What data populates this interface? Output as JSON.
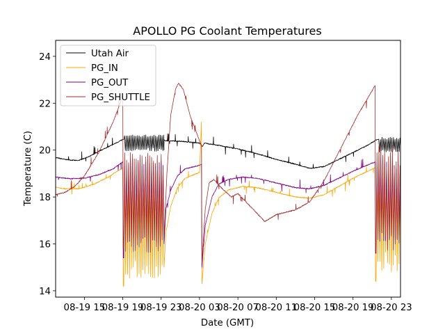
{
  "chart_data": {
    "type": "line",
    "title": "APOLLO PG Coolant Temperatures",
    "xlabel": "Date (GMT)",
    "ylabel": "Temperature (C)",
    "x_unit": "hours since 08-19 00:00 GMT",
    "xlim": [
      12.0,
      47.95
    ],
    "ylim": [
      13.73,
      24.68
    ],
    "grid": false,
    "legend_position": "top-left",
    "x_ticks": [
      {
        "value": 15,
        "label": "08-19 15"
      },
      {
        "value": 19,
        "label": "08-19 19"
      },
      {
        "value": 23,
        "label": "08-19 23"
      },
      {
        "value": 27,
        "label": "08-20 03"
      },
      {
        "value": 31,
        "label": "08-20 07"
      },
      {
        "value": 35,
        "label": "08-20 11"
      },
      {
        "value": 39,
        "label": "08-20 15"
      },
      {
        "value": 43,
        "label": "08-20 19"
      },
      {
        "value": 47,
        "label": "08-20 23"
      }
    ],
    "y_ticks": [
      {
        "value": 14,
        "label": "14"
      },
      {
        "value": 16,
        "label": "16"
      },
      {
        "value": 18,
        "label": "18"
      },
      {
        "value": 20,
        "label": "20"
      },
      {
        "value": 22,
        "label": "22"
      },
      {
        "value": 24,
        "label": "24"
      }
    ],
    "series": [
      {
        "name": "Utah Air",
        "color": "#000000",
        "points": [
          [
            12.0,
            19.68
          ],
          [
            13.0,
            19.6
          ],
          [
            14.3,
            19.55
          ],
          [
            15.5,
            19.72
          ],
          [
            16.5,
            19.95
          ],
          [
            17.8,
            20.2
          ],
          [
            19.0,
            20.45
          ],
          [
            19.1,
            20.45
          ],
          [
            23.3,
            20.45
          ],
          [
            23.4,
            20.4
          ],
          [
            25.0,
            20.38
          ],
          [
            27.0,
            20.3
          ],
          [
            27.3,
            20.15
          ],
          [
            27.5,
            20.3
          ],
          [
            29.0,
            20.2
          ],
          [
            31.0,
            20.05
          ],
          [
            33.0,
            19.85
          ],
          [
            35.0,
            19.6
          ],
          [
            37.0,
            19.4
          ],
          [
            38.5,
            19.22
          ],
          [
            40.0,
            19.3
          ],
          [
            41.5,
            19.6
          ],
          [
            43.0,
            19.9
          ],
          [
            44.5,
            20.2
          ],
          [
            45.5,
            20.45
          ],
          [
            45.6,
            20.45
          ],
          [
            48.0,
            20.45
          ]
        ],
        "oscillations": [
          {
            "start": 19.1,
            "end": 23.3,
            "period": 0.17,
            "low": 19.95,
            "high": 20.65
          },
          {
            "start": 45.6,
            "end": 47.95,
            "period": 0.17,
            "low": 19.9,
            "high": 20.55
          }
        ]
      },
      {
        "name": "PG_IN",
        "color": "#ffa500",
        "points": [
          [
            12.0,
            18.42
          ],
          [
            13.0,
            18.35
          ],
          [
            14.5,
            18.35
          ],
          [
            16.0,
            18.55
          ],
          [
            17.5,
            18.85
          ],
          [
            19.0,
            19.25
          ],
          [
            19.05,
            14.2
          ],
          [
            23.3,
            15.0
          ],
          [
            23.5,
            16.5
          ],
          [
            24.0,
            17.6
          ],
          [
            24.7,
            18.4
          ],
          [
            25.5,
            18.8
          ],
          [
            27.0,
            19.05
          ],
          [
            27.2,
            21.2
          ],
          [
            27.25,
            14.3
          ],
          [
            27.6,
            16.0
          ],
          [
            28.3,
            17.3
          ],
          [
            29.0,
            17.95
          ],
          [
            30.0,
            18.3
          ],
          [
            31.5,
            18.45
          ],
          [
            33.0,
            18.4
          ],
          [
            35.0,
            18.2
          ],
          [
            37.0,
            18.0
          ],
          [
            38.5,
            17.95
          ],
          [
            40.0,
            18.1
          ],
          [
            41.5,
            18.45
          ],
          [
            43.0,
            18.8
          ],
          [
            45.3,
            19.25
          ],
          [
            45.35,
            14.4
          ],
          [
            47.95,
            15.2
          ]
        ],
        "oscillations": [
          {
            "start": 19.1,
            "end": 23.2,
            "period": 0.2,
            "low": 14.5,
            "high": 19.2
          },
          {
            "start": 45.4,
            "end": 47.95,
            "period": 0.2,
            "low": 14.8,
            "high": 19.1
          }
        ]
      },
      {
        "name": "PG_OUT",
        "color": "#800080",
        "points": [
          [
            12.0,
            18.85
          ],
          [
            13.5,
            18.78
          ],
          [
            15.0,
            18.8
          ],
          [
            16.5,
            18.95
          ],
          [
            18.0,
            19.2
          ],
          [
            19.0,
            19.5
          ],
          [
            19.05,
            15.4
          ],
          [
            23.3,
            16.0
          ],
          [
            23.5,
            17.5
          ],
          [
            24.0,
            18.3
          ],
          [
            24.7,
            18.9
          ],
          [
            25.5,
            19.2
          ],
          [
            27.0,
            19.35
          ],
          [
            27.2,
            19.4
          ],
          [
            27.25,
            15.0
          ],
          [
            27.6,
            16.8
          ],
          [
            28.3,
            18.0
          ],
          [
            29.0,
            18.55
          ],
          [
            30.0,
            18.75
          ],
          [
            31.5,
            18.85
          ],
          [
            33.0,
            18.8
          ],
          [
            35.0,
            18.6
          ],
          [
            37.0,
            18.4
          ],
          [
            38.5,
            18.35
          ],
          [
            40.0,
            18.5
          ],
          [
            41.5,
            18.8
          ],
          [
            43.0,
            19.1
          ],
          [
            45.3,
            19.5
          ],
          [
            45.35,
            15.6
          ],
          [
            47.95,
            16.5
          ]
        ],
        "oscillations": [
          {
            "start": 19.1,
            "end": 23.2,
            "period": 0.2,
            "low": 16.0,
            "high": 19.6
          },
          {
            "start": 45.4,
            "end": 47.95,
            "period": 0.2,
            "low": 16.0,
            "high": 19.5
          }
        ]
      },
      {
        "name": "PG_SHUTTLE",
        "color": "#a52a2a",
        "points": [
          [
            12.0,
            18.1
          ],
          [
            13.0,
            18.2
          ],
          [
            14.0,
            18.45
          ],
          [
            15.0,
            18.9
          ],
          [
            16.5,
            19.9
          ],
          [
            18.0,
            21.2
          ],
          [
            19.0,
            22.3
          ],
          [
            19.05,
            15.8
          ],
          [
            23.3,
            16.3
          ],
          [
            23.6,
            19.0
          ],
          [
            24.0,
            21.5
          ],
          [
            24.5,
            22.6
          ],
          [
            24.8,
            22.85
          ],
          [
            25.3,
            22.6
          ],
          [
            26.0,
            21.5
          ],
          [
            27.0,
            20.4
          ],
          [
            27.2,
            20.2
          ],
          [
            27.25,
            15.2
          ],
          [
            27.6,
            17.5
          ],
          [
            28.0,
            18.6
          ],
          [
            28.5,
            18.75
          ],
          [
            29.0,
            18.5
          ],
          [
            30.3,
            18.0
          ],
          [
            31.0,
            18.15
          ],
          [
            33.0,
            17.3
          ],
          [
            33.8,
            16.95
          ],
          [
            35.0,
            17.25
          ],
          [
            37.0,
            17.45
          ],
          [
            38.5,
            17.8
          ],
          [
            40.0,
            18.7
          ],
          [
            41.5,
            19.9
          ],
          [
            43.5,
            21.5
          ],
          [
            45.3,
            22.75
          ],
          [
            45.35,
            15.7
          ],
          [
            47.95,
            16.5
          ]
        ],
        "oscillations": [
          {
            "start": 19.1,
            "end": 23.2,
            "period": 0.2,
            "low": 15.6,
            "high": 19.9
          },
          {
            "start": 45.4,
            "end": 47.95,
            "period": 0.2,
            "low": 15.7,
            "high": 20.2
          }
        ]
      }
    ]
  }
}
